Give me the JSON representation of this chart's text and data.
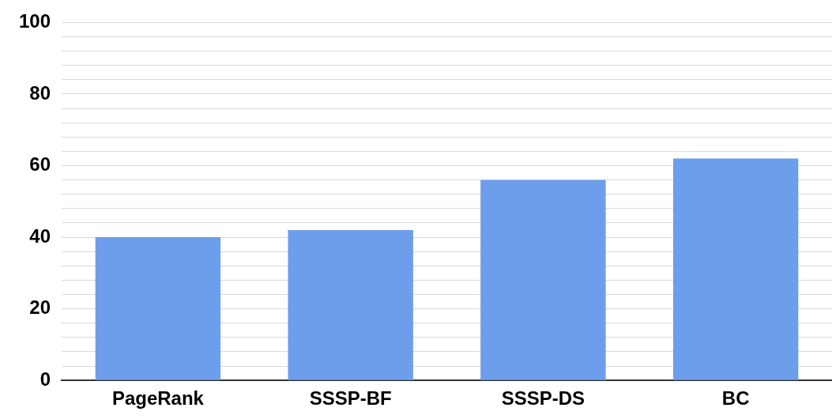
{
  "chart_data": {
    "type": "bar",
    "categories": [
      "PageRank",
      "SSSP-BF",
      "SSSP-DS",
      "BC"
    ],
    "values": [
      40,
      42,
      56,
      62
    ],
    "color": "#6d9eeb",
    "ylim": [
      0,
      100
    ],
    "yticks": [
      0,
      {
        "value": 4,
        "label": null
      },
      {
        "value": 8,
        "label": null
      },
      {
        "value": 12,
        "label": null
      },
      {
        "value": 16,
        "label": null
      },
      20,
      {
        "value": 24,
        "label": null
      },
      {
        "value": 28,
        "label": null
      },
      {
        "value": 32,
        "label": null
      },
      {
        "value": 36,
        "label": null
      },
      40,
      {
        "value": 44,
        "label": null
      },
      {
        "value": 48,
        "label": null
      },
      {
        "value": 52,
        "label": null
      },
      {
        "value": 56,
        "label": null
      },
      60,
      {
        "value": 64,
        "label": null
      },
      {
        "value": 68,
        "label": null
      },
      {
        "value": 72,
        "label": null
      },
      {
        "value": 76,
        "label": null
      },
      80,
      {
        "value": 84,
        "label": null
      },
      {
        "value": 88,
        "label": null
      },
      {
        "value": 92,
        "label": null
      },
      {
        "value": 96,
        "label": null
      },
      100
    ],
    "grid": "y",
    "legend": false
  }
}
